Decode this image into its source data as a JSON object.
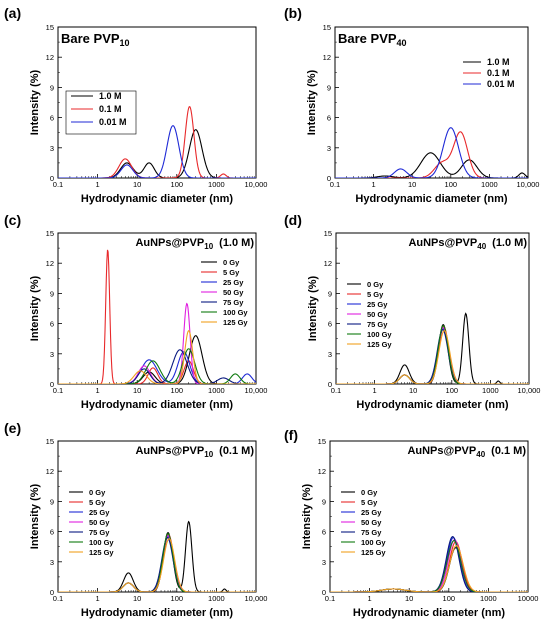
{
  "chart_data": [
    {
      "panel": "(a)",
      "type": "line",
      "title": "Bare PVP",
      "title_sub": "10",
      "title_suffix": "",
      "title_style": "large",
      "xlabel": "Hydrodynamic diameter (nm)",
      "ylabel": "Intensity (%)",
      "xscale": "log",
      "xlim": [
        0.1,
        10000
      ],
      "ylim": [
        0,
        15
      ],
      "xticks": [
        "0.1",
        "1",
        "10",
        "100",
        "1000",
        "10,000"
      ],
      "yticks": [
        "0",
        "3",
        "6",
        "9",
        "12",
        "15"
      ],
      "legend_position": "left",
      "series": [
        {
          "name": "1.0 M",
          "color": "#000000",
          "peaks": [
            [
              5.5,
              1.5,
              0.16
            ],
            [
              20,
              1.5,
              0.13
            ],
            [
              300,
              4.8,
              0.16
            ]
          ]
        },
        {
          "name": "0.1 M",
          "color": "#e8292b",
          "peaks": [
            [
              5,
              1.9,
              0.16
            ],
            [
              210,
              7.1,
              0.11
            ],
            [
              1500,
              0.4,
              0.07
            ]
          ]
        },
        {
          "name": "0.01 M",
          "color": "#1f2ad6",
          "peaks": [
            [
              5.5,
              1.3,
              0.15
            ],
            [
              80,
              5.2,
              0.15
            ]
          ]
        }
      ]
    },
    {
      "panel": "(b)",
      "type": "line",
      "title": "Bare PVP",
      "title_sub": "40",
      "title_suffix": "",
      "title_style": "large",
      "xlabel": "Hydrodynamic diameter (nm)",
      "ylabel": "Intensity (%)",
      "xscale": "log",
      "xlim": [
        0.1,
        10000
      ],
      "ylim": [
        0,
        15
      ],
      "xticks": [
        "0.1",
        "1",
        "10",
        "100",
        "1000",
        "10,000"
      ],
      "yticks": [
        "0",
        "3",
        "6",
        "9",
        "12",
        "15"
      ],
      "legend_position": "top-right",
      "series": [
        {
          "name": "1.0 M",
          "color": "#000000",
          "peaks": [
            [
              2,
              0.2,
              0.2
            ],
            [
              30,
              2.5,
              0.25
            ],
            [
              300,
              1.8,
              0.2
            ],
            [
              7000,
              0.5,
              0.08
            ]
          ]
        },
        {
          "name": "0.1 M",
          "color": "#e8292b",
          "peaks": [
            [
              60,
              1.5,
              0.2
            ],
            [
              180,
              4.5,
              0.18
            ]
          ]
        },
        {
          "name": "0.01 M",
          "color": "#1f2ad6",
          "peaks": [
            [
              5,
              0.9,
              0.16
            ],
            [
              100,
              5.0,
              0.2
            ]
          ]
        }
      ]
    },
    {
      "panel": "(c)",
      "type": "line",
      "title": "AuNPs@PVP",
      "title_sub": "10",
      "title_suffix": "(1.0 M)",
      "title_style": "medium",
      "xlabel": "Hydrodynamic diameter (nm)",
      "ylabel": "Intensity (%)",
      "xscale": "log",
      "xlim": [
        0.1,
        10000
      ],
      "ylim": [
        0,
        15
      ],
      "xticks": [
        "0.1",
        "1",
        "10",
        "100",
        "1000",
        "10,000"
      ],
      "yticks": [
        "0",
        "3",
        "6",
        "9",
        "12",
        "15"
      ],
      "legend_position": "right",
      "series": [
        {
          "name": "0 Gy",
          "color": "#000000",
          "peaks": [
            [
              20,
              1.2,
              0.15
            ],
            [
              300,
              4.8,
              0.16
            ]
          ]
        },
        {
          "name": "5 Gy",
          "color": "#e8292b",
          "peaks": [
            [
              1.8,
              13.4,
              0.05
            ],
            [
              25,
              1.6,
              0.12
            ],
            [
              200,
              2.3,
              0.12
            ]
          ]
        },
        {
          "name": "25 Gy",
          "color": "#1f2ad6",
          "peaks": [
            [
              20,
              2.4,
              0.2
            ],
            [
              150,
              3.2,
              0.15
            ],
            [
              6000,
              1.0,
              0.12
            ]
          ]
        },
        {
          "name": "50 Gy",
          "color": "#e020e0",
          "peaks": [
            [
              15,
              1.8,
              0.15
            ],
            [
              180,
              8.0,
              0.08
            ]
          ]
        },
        {
          "name": "75 Gy",
          "color": "#0a1a80",
          "peaks": [
            [
              15,
              1.5,
              0.15
            ],
            [
              120,
              3.4,
              0.18
            ],
            [
              1500,
              0.6,
              0.15
            ]
          ]
        },
        {
          "name": "100 Gy",
          "color": "#0f7a0f",
          "peaks": [
            [
              25,
              2.3,
              0.18
            ],
            [
              200,
              3.5,
              0.15
            ],
            [
              3000,
              1.0,
              0.12
            ]
          ]
        },
        {
          "name": "125 Gy",
          "color": "#f0a020",
          "peaks": [
            [
              12,
              1.3,
              0.16
            ],
            [
              200,
              5.3,
              0.1
            ]
          ]
        }
      ]
    },
    {
      "panel": "(d)",
      "type": "line",
      "title": "AuNPs@PVP",
      "title_sub": "40",
      "title_suffix": "(1.0 M)",
      "title_style": "medium",
      "xlabel": "Hydrodynamic diameter (nm)",
      "ylabel": "Intensity (%)",
      "xscale": "log",
      "xlim": [
        0.1,
        10000
      ],
      "ylim": [
        0,
        15
      ],
      "xticks": [
        "0.1",
        "1",
        "10",
        "100",
        "1000",
        "10,000"
      ],
      "yticks": [
        "0",
        "3",
        "6",
        "9",
        "12",
        "15"
      ],
      "legend_position": "left",
      "series": [
        {
          "name": "0 Gy",
          "color": "#000000",
          "peaks": [
            [
              6,
              1.9,
              0.12
            ],
            [
              60,
              5.9,
              0.12
            ],
            [
              230,
              7.0,
              0.08
            ],
            [
              1600,
              0.3,
              0.04
            ]
          ]
        },
        {
          "name": "5 Gy",
          "color": "#e8292b",
          "peaks": [
            [
              6,
              0.9,
              0.13
            ],
            [
              62,
              5.7,
              0.13
            ]
          ]
        },
        {
          "name": "25 Gy",
          "color": "#1f2ad6",
          "peaks": [
            [
              6,
              0.9,
              0.13
            ],
            [
              60,
              5.5,
              0.14
            ]
          ]
        },
        {
          "name": "50 Gy",
          "color": "#e020e0",
          "peaks": [
            [
              6,
              0.9,
              0.13
            ],
            [
              60,
              5.6,
              0.14
            ]
          ]
        },
        {
          "name": "75 Gy",
          "color": "#0a1a80",
          "peaks": [
            [
              6,
              0.9,
              0.13
            ],
            [
              58,
              5.4,
              0.14
            ]
          ]
        },
        {
          "name": "100 Gy",
          "color": "#0f7a0f",
          "peaks": [
            [
              6,
              0.9,
              0.13
            ],
            [
              60,
              5.8,
              0.13
            ]
          ]
        },
        {
          "name": "125 Gy",
          "color": "#f0a020",
          "peaks": [
            [
              6,
              0.9,
              0.13
            ],
            [
              64,
              5.3,
              0.14
            ]
          ]
        }
      ]
    },
    {
      "panel": "(e)",
      "type": "line",
      "title": "AuNPs@PVP",
      "title_sub": "10",
      "title_suffix": "(0.1 M)",
      "title_style": "medium",
      "xlabel": "Hydrodynamic diameter (nm)",
      "ylabel": "Intensity (%)",
      "xscale": "log",
      "xlim": [
        0.1,
        10000
      ],
      "ylim": [
        0,
        15
      ],
      "xticks": [
        "0.1",
        "1",
        "10",
        "100",
        "1000",
        "10,000"
      ],
      "yticks": [
        "0",
        "3",
        "6",
        "9",
        "12",
        "15"
      ],
      "legend_position": "left",
      "series": [
        {
          "name": "0 Gy",
          "color": "#000000",
          "peaks": [
            [
              6,
              1.9,
              0.12
            ],
            [
              60,
              5.9,
              0.12
            ],
            [
              200,
              7.0,
              0.08
            ],
            [
              1600,
              0.3,
              0.04
            ]
          ]
        },
        {
          "name": "5 Gy",
          "color": "#e8292b",
          "peaks": [
            [
              6,
              0.9,
              0.13
            ],
            [
              62,
              5.7,
              0.13
            ]
          ]
        },
        {
          "name": "25 Gy",
          "color": "#1f2ad6",
          "peaks": [
            [
              6,
              0.9,
              0.13
            ],
            [
              60,
              5.5,
              0.14
            ]
          ]
        },
        {
          "name": "50 Gy",
          "color": "#e020e0",
          "peaks": [
            [
              6,
              0.9,
              0.13
            ],
            [
              60,
              5.6,
              0.14
            ]
          ]
        },
        {
          "name": "75 Gy",
          "color": "#0a1a80",
          "peaks": [
            [
              6,
              0.9,
              0.13
            ],
            [
              58,
              5.4,
              0.14
            ]
          ]
        },
        {
          "name": "100 Gy",
          "color": "#0f7a0f",
          "peaks": [
            [
              6,
              0.9,
              0.13
            ],
            [
              60,
              5.8,
              0.13
            ]
          ]
        },
        {
          "name": "125 Gy",
          "color": "#f0a020",
          "peaks": [
            [
              6,
              0.9,
              0.13
            ],
            [
              64,
              5.3,
              0.14
            ]
          ]
        }
      ]
    },
    {
      "panel": "(f)",
      "type": "line",
      "title": "AuNPs@PVP",
      "title_sub": "40",
      "title_suffix": "(0.1 M)",
      "title_style": "medium",
      "xlabel": "Hydrodynamic diameter (nm)",
      "ylabel": "Intensity (%)",
      "xscale": "log",
      "xlim": [
        0.1,
        10000
      ],
      "ylim": [
        0,
        15
      ],
      "xticks": [
        "0.1",
        "1",
        "10",
        "100",
        "1000",
        "10000"
      ],
      "yticks": [
        "0",
        "3",
        "6",
        "9",
        "12",
        "15"
      ],
      "legend_position": "left",
      "series": [
        {
          "name": "0 Gy",
          "color": "#000000",
          "peaks": [
            [
              4,
              0.3,
              0.3
            ],
            [
              150,
              4.4,
              0.16
            ]
          ]
        },
        {
          "name": "5 Gy",
          "color": "#e8292b",
          "peaks": [
            [
              4,
              0.3,
              0.3
            ],
            [
              150,
              5.0,
              0.16
            ]
          ]
        },
        {
          "name": "25 Gy",
          "color": "#1f2ad6",
          "peaks": [
            [
              4,
              0.3,
              0.3
            ],
            [
              130,
              5.4,
              0.16
            ]
          ]
        },
        {
          "name": "50 Gy",
          "color": "#e020e0",
          "peaks": [
            [
              4,
              0.3,
              0.3
            ],
            [
              140,
              5.2,
              0.16
            ]
          ]
        },
        {
          "name": "75 Gy",
          "color": "#0a1a80",
          "peaks": [
            [
              4,
              0.3,
              0.3
            ],
            [
              125,
              5.5,
              0.16
            ]
          ]
        },
        {
          "name": "100 Gy",
          "color": "#0f7a0f",
          "peaks": [
            [
              4,
              0.3,
              0.3
            ],
            [
              135,
              5.1,
              0.17
            ]
          ]
        },
        {
          "name": "125 Gy",
          "color": "#f0a020",
          "peaks": [
            [
              4,
              0.3,
              0.3
            ],
            [
              155,
              4.6,
              0.17
            ]
          ]
        }
      ]
    }
  ]
}
